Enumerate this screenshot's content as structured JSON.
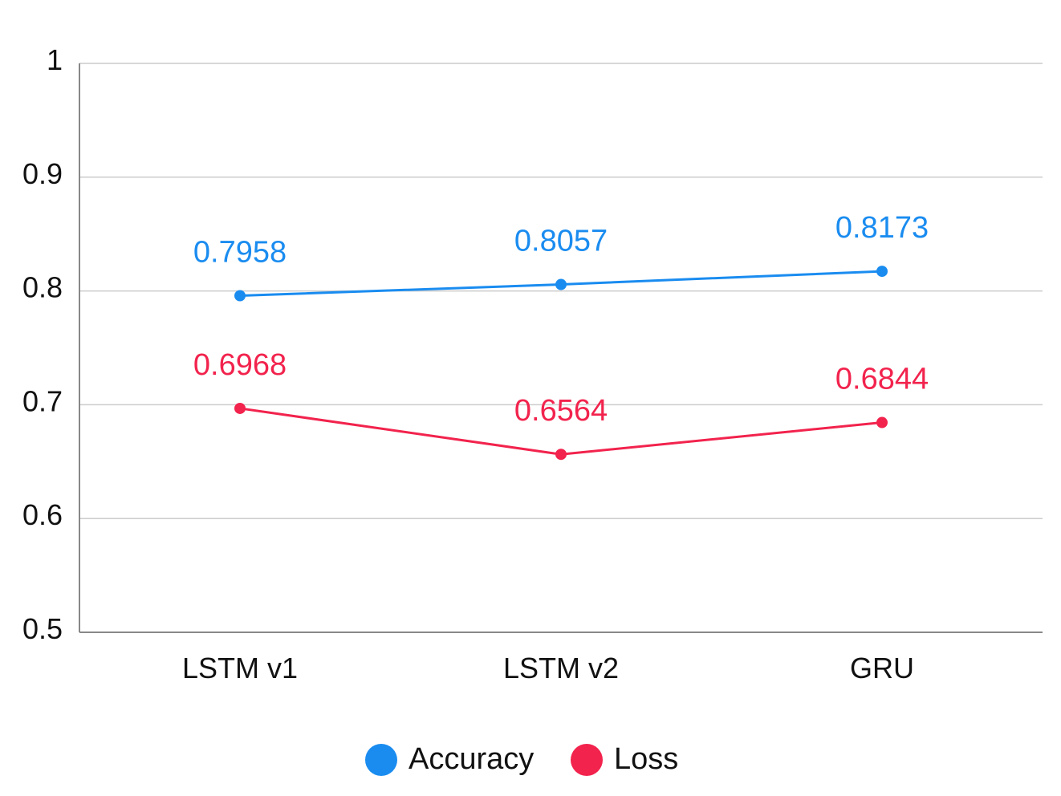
{
  "chart_data": {
    "type": "line",
    "categories": [
      "LSTM v1",
      "LSTM v2",
      "GRU"
    ],
    "series": [
      {
        "name": "Accuracy",
        "values": [
          0.7958,
          0.8057,
          0.8173
        ],
        "color": "#1a8cf0"
      },
      {
        "name": "Loss",
        "values": [
          0.6968,
          0.6564,
          0.6844
        ],
        "color": "#f2234d"
      }
    ],
    "ylim": [
      0.5,
      1
    ],
    "yticks": [
      "0.5",
      "0.6",
      "0.7",
      "0.8",
      "0.9",
      "1"
    ],
    "grid": true,
    "legend_position": "bottom",
    "data_labels": true
  }
}
